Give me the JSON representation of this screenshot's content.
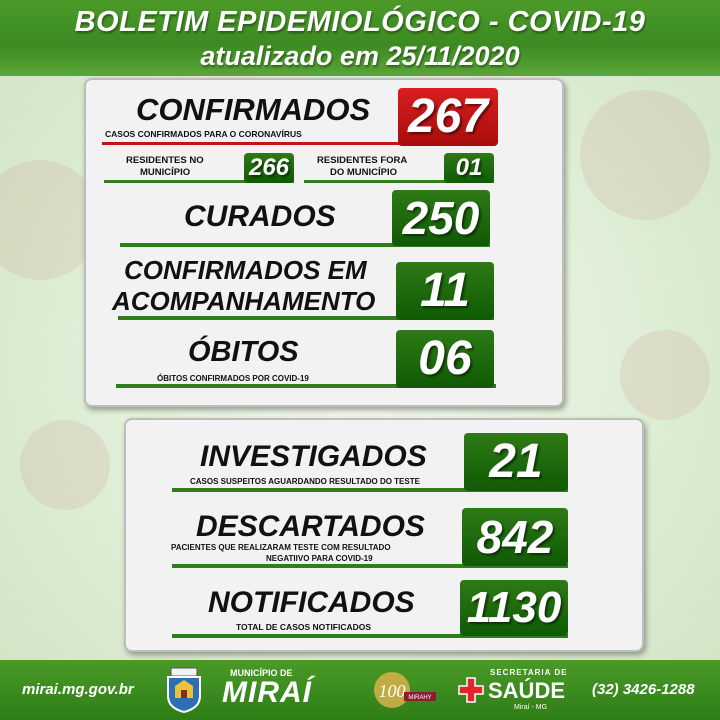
{
  "header": {
    "title": "BOLETIM EPIDEMIOLÓGICO - COVID-19",
    "subtitle": "atualizado em 25/11/2020"
  },
  "colors": {
    "green": "#2f7d1e",
    "red": "#c41414",
    "card": "#f2f2f2"
  },
  "card1": {
    "confirmados": {
      "label": "CONFIRMADOS",
      "desc": "CASOS CONFIRMADOS PARA O CORONAVÍRUS",
      "value": "267"
    },
    "residentes": {
      "label_line1": "RESIDENTES NO",
      "label_line2": "MUNICÍPIO",
      "value": "266"
    },
    "residentes_fora": {
      "label_line1": "RESIDENTES FORA",
      "label_line2": "DO MUNICÍPIO",
      "value": "01"
    },
    "curados": {
      "label": "CURADOS",
      "value": "250"
    },
    "acompanhamento": {
      "label_line1": "CONFIRMADOS EM",
      "label_line2": "ACOMPANHAMENTO",
      "value": "11"
    },
    "obitos": {
      "label": "ÓBITOS",
      "desc": "ÓBITOS CONFIRMADOS POR COVID-19",
      "value": "06"
    }
  },
  "card2": {
    "investigados": {
      "label": "INVESTIGADOS",
      "desc": "CASOS SUSPEITOS AGUARDANDO RESULTADO DO TESTE",
      "value": "21"
    },
    "descartados": {
      "label": "DESCARTADOS",
      "desc_line1": "PACIENTES   QUE   REALIZARAM   TESTE   COM   RESULTADO",
      "desc_line2": "NEGATIIVO PARA COVID-19",
      "value": "842"
    },
    "notificados": {
      "label": "NOTIFICADOS",
      "desc": "TOTAL DE CASOS NOTIFICADOS",
      "value": "1130"
    }
  },
  "footer": {
    "website": "mirai.mg.gov.br",
    "municipio_small": "MUNICÍPIO DE",
    "municipio_name": "MIRAÍ",
    "anos_number": "100",
    "anos_text": "MIRAHY",
    "secretaria_small": "SECRETARIA DE",
    "secretaria_name": "SAÚDE",
    "secretaria_city": "Miraí - MG",
    "phone": "(32) 3426-1288",
    "icons": [
      "crest-icon",
      "centenary-logo-icon",
      "health-cross-icon"
    ]
  }
}
